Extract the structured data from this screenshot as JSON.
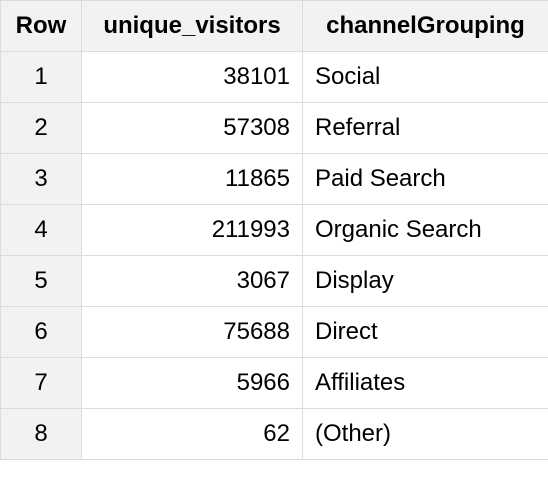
{
  "table": {
    "columns": [
      "Row",
      "unique_visitors",
      "channelGrouping"
    ],
    "rows": [
      {
        "row": "1",
        "unique_visitors": "38101",
        "channelGrouping": "Social"
      },
      {
        "row": "2",
        "unique_visitors": "57308",
        "channelGrouping": "Referral"
      },
      {
        "row": "3",
        "unique_visitors": "11865",
        "channelGrouping": "Paid Search"
      },
      {
        "row": "4",
        "unique_visitors": "211993",
        "channelGrouping": "Organic Search"
      },
      {
        "row": "5",
        "unique_visitors": "3067",
        "channelGrouping": "Display"
      },
      {
        "row": "6",
        "unique_visitors": "75688",
        "channelGrouping": "Direct"
      },
      {
        "row": "7",
        "unique_visitors": "5966",
        "channelGrouping": "Affiliates"
      },
      {
        "row": "8",
        "unique_visitors": "62",
        "channelGrouping": "(Other)"
      }
    ]
  },
  "colors": {
    "header_bg": "#f2f2f2",
    "row_number_bg": "#f2f2f2",
    "grid_line": "#dcdcdc"
  }
}
